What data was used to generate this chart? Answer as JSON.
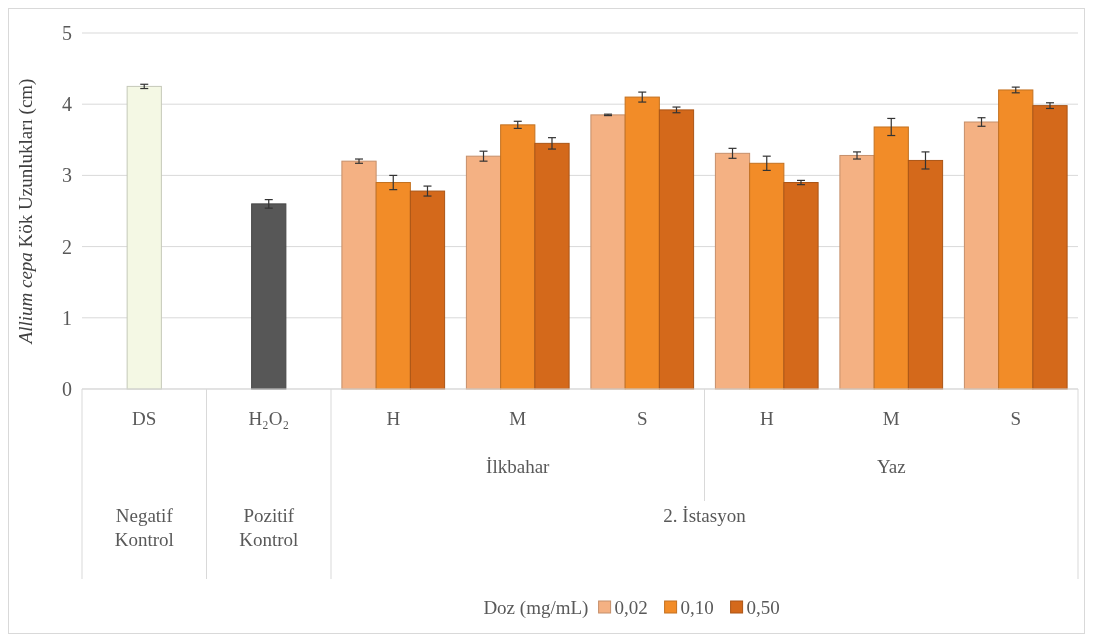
{
  "chart_data": {
    "type": "bar",
    "ylabel": "Allium cepa Kök Uzunlukları (cm)",
    "categories": [
      "DS",
      "H₂O₂",
      "H",
      "M",
      "S",
      "H",
      "M",
      "S"
    ],
    "series": [
      {
        "colors": [
          "#f4f8e4",
          "#575757",
          null,
          null,
          null,
          null,
          null,
          null
        ],
        "values": [
          4.25,
          2.6,
          null,
          null,
          null,
          null,
          null,
          null
        ],
        "errors": [
          0.03,
          0.06,
          null,
          null,
          null,
          null,
          null,
          null
        ]
      },
      {
        "name": "0,02",
        "color": "#f4b183",
        "values": [
          null,
          null,
          3.2,
          3.27,
          3.85,
          3.31,
          3.28,
          3.75
        ],
        "errors": [
          null,
          null,
          0.03,
          0.07,
          0.01,
          0.07,
          0.05,
          0.06
        ]
      },
      {
        "name": "0,10",
        "color": "#f28c28",
        "values": [
          null,
          null,
          2.9,
          3.71,
          4.1,
          3.17,
          3.68,
          4.2
        ],
        "errors": [
          null,
          null,
          0.1,
          0.05,
          0.07,
          0.1,
          0.12,
          0.04
        ]
      },
      {
        "name": "0,50",
        "color": "#d4691b",
        "values": [
          null,
          null,
          2.78,
          3.45,
          3.92,
          2.9,
          3.21,
          3.98
        ],
        "errors": [
          null,
          null,
          0.07,
          0.08,
          0.04,
          0.03,
          0.12,
          0.04
        ]
      }
    ],
    "annotations": [
      "İlkbahar",
      "Yaz",
      "Negatif Kontrol",
      "Pozitif Kontrol",
      "2. İstasyon"
    ],
    "ylim": [
      0,
      5
    ],
    "yticks": [
      0,
      1,
      2,
      3,
      4,
      5
    ],
    "grid": "y",
    "legend": "bottom",
    "legend_title": "Doz (mg/mL)"
  }
}
